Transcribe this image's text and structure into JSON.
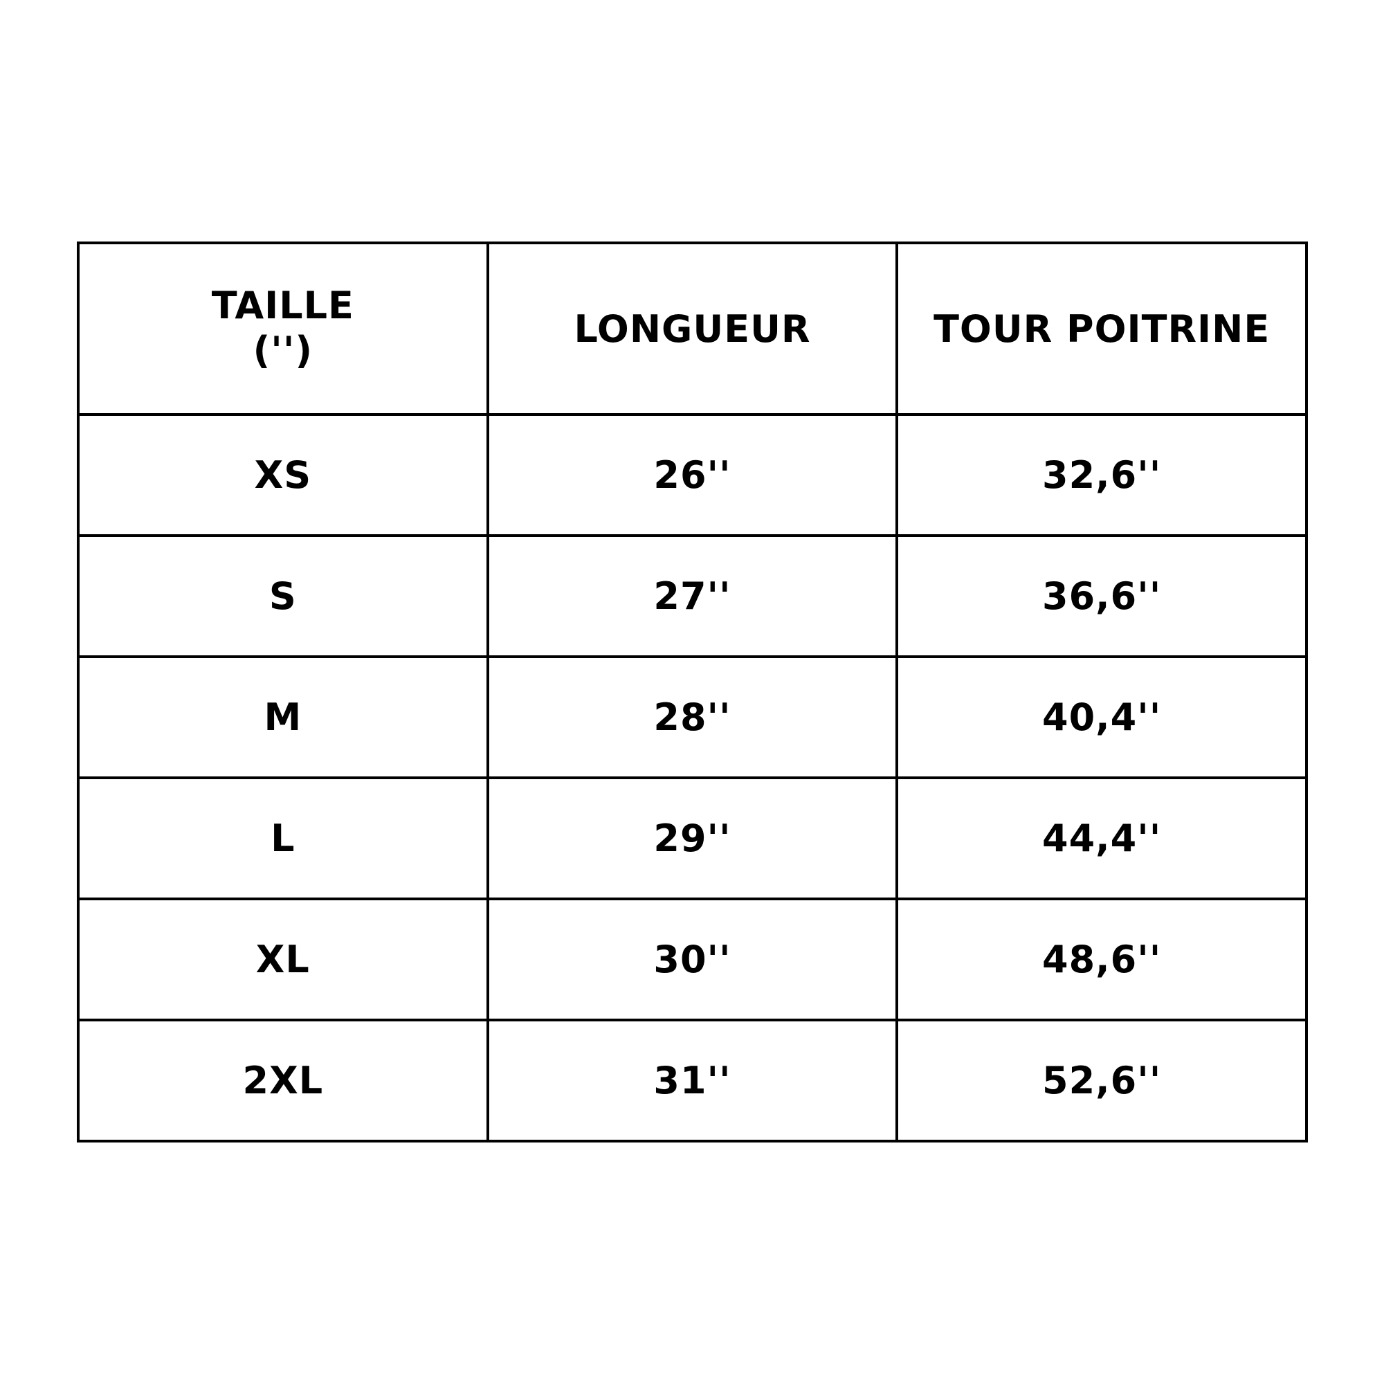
{
  "table": {
    "headers": [
      {
        "line1": "TAILLE",
        "line2": "('')"
      },
      {
        "line1": "LONGUEUR"
      },
      {
        "line1": "TOUR POITRINE"
      }
    ],
    "rows": [
      [
        "XS",
        "26''",
        "32,6''"
      ],
      [
        "S",
        "27''",
        "36,6''"
      ],
      [
        "M",
        "28''",
        "40,4''"
      ],
      [
        "L",
        "29''",
        "44,4''"
      ],
      [
        "XL",
        "30''",
        "48,6''"
      ],
      [
        "2XL",
        "31''",
        "52,6''"
      ]
    ]
  }
}
